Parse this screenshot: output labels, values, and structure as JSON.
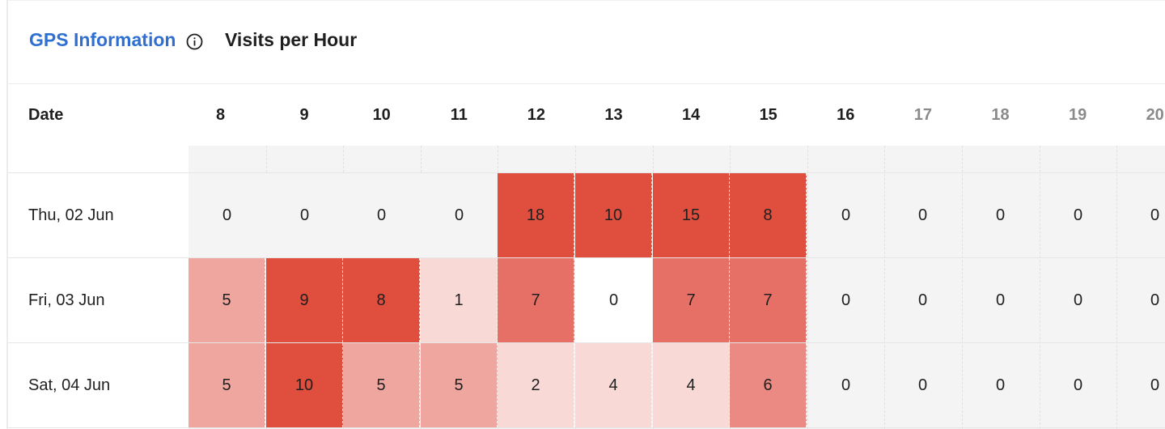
{
  "header": {
    "tab_gps": "GPS Information",
    "tab_visits": "Visits per Hour"
  },
  "table": {
    "date_header": "Date",
    "hours": [
      "8",
      "9",
      "10",
      "11",
      "12",
      "13",
      "14",
      "15",
      "16",
      "17",
      "18",
      "19",
      "20"
    ],
    "dim_from_index": 9,
    "rows": [
      {
        "date": "Thu, 02 Jun",
        "values": [
          0,
          0,
          0,
          0,
          18,
          10,
          15,
          8,
          0,
          0,
          0,
          0,
          0
        ]
      },
      {
        "date": "Fri, 03 Jun",
        "values": [
          5,
          9,
          8,
          1,
          7,
          0,
          7,
          7,
          0,
          0,
          0,
          0,
          0
        ]
      },
      {
        "date": "Sat, 04 Jun",
        "values": [
          5,
          10,
          5,
          5,
          2,
          4,
          4,
          6,
          0,
          0,
          0,
          0,
          0
        ]
      }
    ]
  },
  "colors": {
    "accent": "#2f6fd1",
    "heat_max": "#e04e3e",
    "zero": "#f4f4f4"
  }
}
